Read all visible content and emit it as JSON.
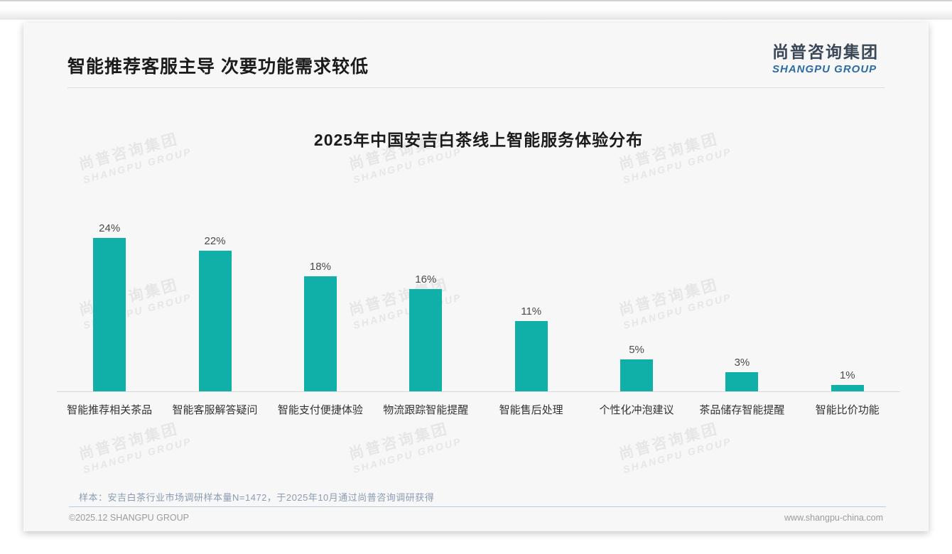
{
  "header": {
    "title": "智能推荐客服主导 次要功能需求较低"
  },
  "logo": {
    "cn": "尚普咨询集团",
    "en": "SHANGPU GROUP"
  },
  "chart_data": {
    "type": "bar",
    "title": "2025年中国安吉白茶线上智能服务体验分布",
    "categories": [
      "智能推荐相关茶品",
      "智能客服解答疑问",
      "智能支付便捷体验",
      "物流跟踪智能提醒",
      "智能售后处理",
      "个性化冲泡建议",
      "茶品储存智能提醒",
      "智能比价功能"
    ],
    "values": [
      24,
      22,
      18,
      16,
      11,
      5,
      3,
      1
    ],
    "value_suffix": "%",
    "bar_color": "#10b0a8",
    "ylim": [
      0,
      26
    ],
    "grid": false,
    "legend": false,
    "xlabel": "",
    "ylabel": ""
  },
  "watermark": {
    "line1": "尚普咨询集团",
    "line2": "SHANGPU GROUP"
  },
  "footnote": {
    "text": "样本：安吉白茶行业市场调研样本量N=1472，于2025年10月通过尚普咨询调研获得"
  },
  "footer": {
    "copyright": "©2025.12 SHANGPU GROUP",
    "website": "www.shangpu-china.com"
  }
}
